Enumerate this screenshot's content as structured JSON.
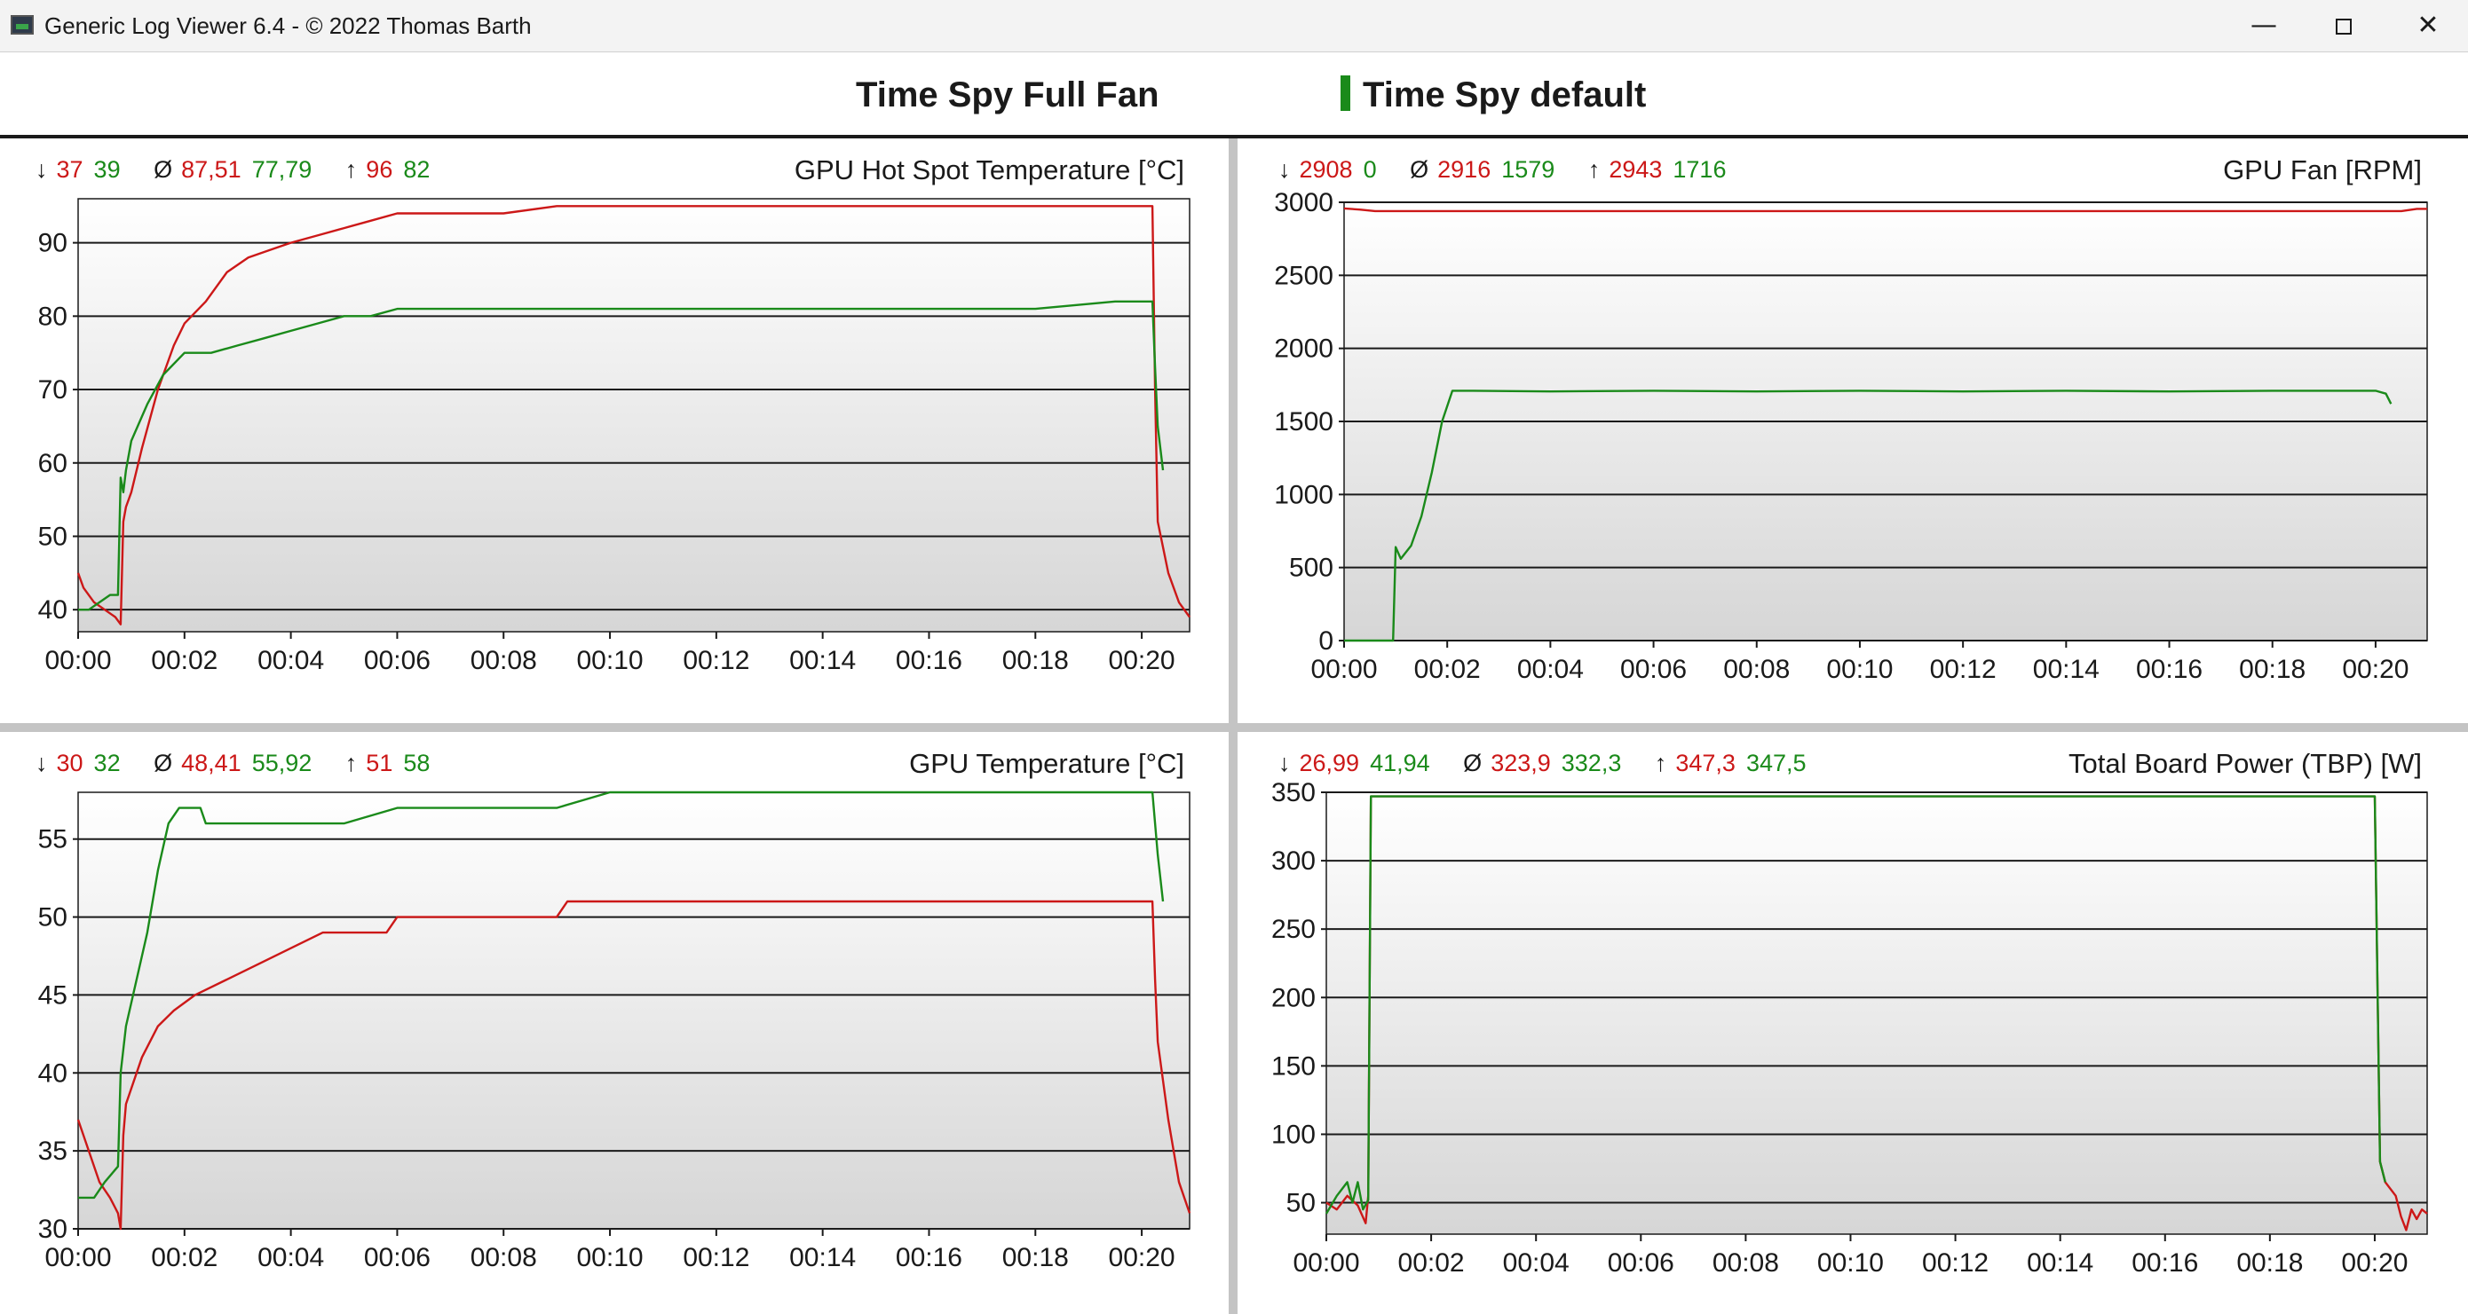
{
  "window": {
    "title": "Generic Log Viewer 6.4 - © 2022 Thomas Barth",
    "minimize_label": "—",
    "close_label": "✕"
  },
  "legend": [
    {
      "label": "Time Spy Full Fan",
      "color": "#cc1818"
    },
    {
      "label": "Time Spy default",
      "color": "#1a8a1a"
    }
  ],
  "colors": {
    "series_full_fan": "#cc1818",
    "series_default": "#1a8a1a",
    "grid": "#1a1a1a"
  },
  "chart_data": [
    {
      "type": "line",
      "title": "GPU Hot Spot Temperature [°C]",
      "stats": {
        "min": [
          "37",
          "39"
        ],
        "avg": [
          "87,51",
          "77,79"
        ],
        "max": [
          "96",
          "82"
        ]
      },
      "x_ticks": [
        "00:00",
        "00:02",
        "00:04",
        "00:06",
        "00:08",
        "00:10",
        "00:12",
        "00:14",
        "00:16",
        "00:18",
        "00:20"
      ],
      "y_ticks": [
        "40",
        "50",
        "60",
        "70",
        "80",
        "90"
      ],
      "ylim": [
        37,
        96
      ],
      "xlim": [
        0,
        20.9
      ],
      "grid": true,
      "series": [
        {
          "name": "Time Spy Full Fan",
          "color": "#cc1818",
          "x": [
            0,
            0.1,
            0.3,
            0.5,
            0.7,
            0.8,
            0.85,
            0.9,
            1.0,
            1.2,
            1.5,
            1.8,
            2.0,
            2.4,
            2.8,
            3.2,
            3.6,
            4.0,
            4.5,
            5.0,
            5.5,
            6.0,
            7.0,
            8.0,
            9.0,
            10.0,
            12.0,
            14.0,
            16.0,
            18.0,
            19.5,
            20.2,
            20.25,
            20.3,
            20.5,
            20.7,
            20.9
          ],
          "y": [
            45,
            43,
            41,
            40,
            39,
            38,
            52,
            54,
            56,
            62,
            70,
            76,
            79,
            82,
            86,
            88,
            89,
            90,
            91,
            92,
            93,
            94,
            94,
            94,
            95,
            95,
            95,
            95,
            95,
            95,
            95,
            95,
            70,
            52,
            45,
            41,
            39
          ]
        },
        {
          "name": "Time Spy default",
          "color": "#1a8a1a",
          "x": [
            0,
            0.2,
            0.4,
            0.6,
            0.75,
            0.8,
            0.85,
            0.9,
            1.0,
            1.3,
            1.6,
            2.0,
            2.5,
            3.0,
            3.5,
            4.0,
            4.5,
            5.0,
            5.5,
            6.0,
            7.0,
            8.0,
            9.0,
            10.0,
            11.0,
            12.0,
            14.0,
            16.0,
            18.0,
            19.5,
            20.2,
            20.25,
            20.3,
            20.4
          ],
          "y": [
            40,
            40,
            41,
            42,
            42,
            58,
            56,
            59,
            63,
            68,
            72,
            75,
            75,
            76,
            77,
            78,
            79,
            80,
            80,
            81,
            81,
            81,
            81,
            81,
            81,
            81,
            81,
            81,
            81,
            82,
            82,
            73,
            65,
            59
          ]
        }
      ]
    },
    {
      "type": "line",
      "title": "GPU Fan [RPM]",
      "stats": {
        "min": [
          "2908",
          "0"
        ],
        "avg": [
          "2916",
          "1579"
        ],
        "max": [
          "2943",
          "1716"
        ]
      },
      "x_ticks": [
        "00:00",
        "00:02",
        "00:04",
        "00:06",
        "00:08",
        "00:10",
        "00:12",
        "00:14",
        "00:16",
        "00:18",
        "00:20"
      ],
      "y_ticks": [
        "0",
        "500",
        "1000",
        "1500",
        "2000",
        "2500",
        "3000"
      ],
      "ylim": [
        0,
        3000
      ],
      "xlim": [
        0,
        21.0
      ],
      "grid": true,
      "series": [
        {
          "name": "Time Spy Full Fan",
          "color": "#cc1818",
          "x": [
            0,
            0.3,
            0.6,
            2,
            5,
            8,
            11,
            14,
            17,
            19,
            20.5,
            20.8,
            21.0
          ],
          "y": [
            2958,
            2950,
            2940,
            2940,
            2940,
            2940,
            2940,
            2940,
            2940,
            2940,
            2940,
            2955,
            2955
          ]
        },
        {
          "name": "Time Spy default",
          "color": "#1a8a1a",
          "x": [
            0,
            0.9,
            0.95,
            1.0,
            1.1,
            1.3,
            1.5,
            1.7,
            1.9,
            2.1,
            2.5,
            4,
            6,
            8,
            10,
            12,
            14,
            16,
            18,
            20,
            20.2,
            20.3
          ],
          "y": [
            0,
            0,
            0,
            640,
            560,
            650,
            850,
            1150,
            1500,
            1710,
            1710,
            1705,
            1710,
            1705,
            1710,
            1705,
            1710,
            1705,
            1710,
            1710,
            1690,
            1620
          ]
        }
      ]
    },
    {
      "type": "line",
      "title": "GPU Temperature [°C]",
      "stats": {
        "min": [
          "30",
          "32"
        ],
        "avg": [
          "48,41",
          "55,92"
        ],
        "max": [
          "51",
          "58"
        ]
      },
      "x_ticks": [
        "00:00",
        "00:02",
        "00:04",
        "00:06",
        "00:08",
        "00:10",
        "00:12",
        "00:14",
        "00:16",
        "00:18",
        "00:20"
      ],
      "y_ticks": [
        "30",
        "35",
        "40",
        "45",
        "50",
        "55"
      ],
      "ylim": [
        30,
        58
      ],
      "xlim": [
        0,
        20.9
      ],
      "grid": true,
      "series": [
        {
          "name": "Time Spy Full Fan",
          "color": "#cc1818",
          "x": [
            0,
            0.2,
            0.4,
            0.6,
            0.75,
            0.8,
            0.85,
            0.9,
            1.2,
            1.5,
            1.8,
            2.2,
            2.8,
            3.4,
            4.0,
            4.6,
            5.2,
            5.8,
            6.0,
            7.0,
            8.0,
            9.0,
            9.2,
            10.0,
            12.0,
            14.0,
            16.0,
            18.0,
            20.2,
            20.25,
            20.3,
            20.5,
            20.7,
            20.9
          ],
          "y": [
            37,
            35,
            33,
            32,
            31,
            30,
            36,
            38,
            41,
            43,
            44,
            45,
            46,
            47,
            48,
            49,
            49,
            49,
            50,
            50,
            50,
            50,
            51,
            51,
            51,
            51,
            51,
            51,
            51,
            46,
            42,
            37,
            33,
            31
          ]
        },
        {
          "name": "Time Spy default",
          "color": "#1a8a1a",
          "x": [
            0,
            0.3,
            0.5,
            0.75,
            0.8,
            0.9,
            1.1,
            1.3,
            1.5,
            1.7,
            1.9,
            2.3,
            2.4,
            3.0,
            4.0,
            5.0,
            6.0,
            7.0,
            8.0,
            9.0,
            10.0,
            12.0,
            14.0,
            16.0,
            18.0,
            20.2,
            20.3,
            20.4
          ],
          "y": [
            32,
            32,
            33,
            34,
            40,
            43,
            46,
            49,
            53,
            56,
            57,
            57,
            56,
            56,
            56,
            56,
            57,
            57,
            57,
            57,
            58,
            58,
            58,
            58,
            58,
            58,
            54,
            51
          ]
        }
      ]
    },
    {
      "type": "line",
      "title": "Total Board Power (TBP) [W]",
      "stats": {
        "min": [
          "26,99",
          "41,94"
        ],
        "avg": [
          "323,9",
          "332,3"
        ],
        "max": [
          "347,3",
          "347,5"
        ]
      },
      "x_ticks": [
        "00:00",
        "00:02",
        "00:04",
        "00:06",
        "00:08",
        "00:10",
        "00:12",
        "00:14",
        "00:16",
        "00:18",
        "00:20"
      ],
      "y_ticks": [
        "50",
        "100",
        "150",
        "200",
        "250",
        "300",
        "350"
      ],
      "ylim": [
        27,
        350
      ],
      "xlim": [
        0,
        21.0
      ],
      "grid": true,
      "series": [
        {
          "name": "Time Spy Full Fan",
          "color": "#cc1818",
          "x": [
            0,
            0.2,
            0.4,
            0.6,
            0.75,
            0.8,
            0.85,
            0.9,
            2,
            5,
            10,
            15,
            20.0,
            20.1,
            20.2,
            20.4,
            20.5,
            20.6,
            20.7,
            20.8,
            20.9,
            21.0
          ],
          "y": [
            50,
            45,
            55,
            48,
            35,
            55,
            347,
            347,
            347,
            347,
            347,
            347,
            347,
            80,
            65,
            55,
            40,
            30,
            45,
            38,
            45,
            42
          ]
        },
        {
          "name": "Time Spy default",
          "color": "#1a8a1a",
          "x": [
            0,
            0.2,
            0.3,
            0.4,
            0.5,
            0.6,
            0.7,
            0.8,
            0.85,
            0.9,
            2,
            5,
            10,
            15,
            20.0,
            20.1,
            20.2
          ],
          "y": [
            42,
            55,
            60,
            65,
            50,
            65,
            45,
            52,
            347,
            347,
            347,
            347,
            347,
            347,
            347,
            80,
            65
          ]
        }
      ]
    }
  ]
}
